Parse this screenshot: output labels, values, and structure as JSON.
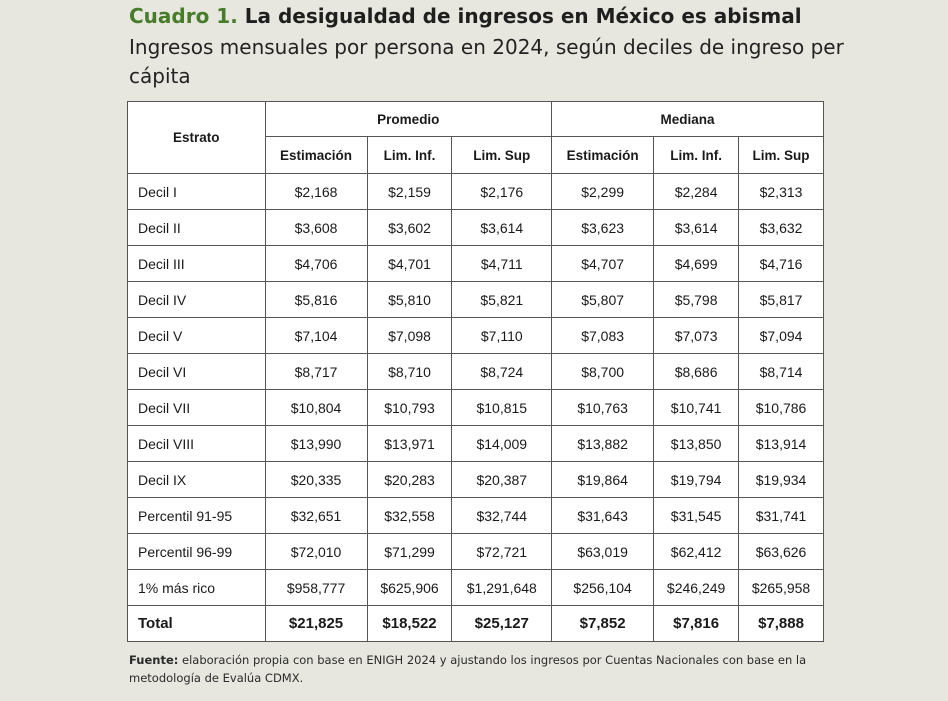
{
  "header": {
    "title_prefix": "Cuadro 1.",
    "title_text": "La desigualdad de ingresos en México es abismal",
    "subtitle": "Ingresos mensuales por persona en 2024, según deciles de ingreso per cápita"
  },
  "table": {
    "stratum_header": "Estrato",
    "groups": [
      "Promedio",
      "Mediana"
    ],
    "subheaders": [
      "Estimación",
      "Lim. Inf.",
      "Lim. Sup",
      "Estimación",
      "Lim. Inf.",
      "Lim. Sup"
    ],
    "rows": [
      {
        "label": "Decil I",
        "values": [
          "$2,168",
          "$2,159",
          "$2,176",
          "$2,299",
          "$2,284",
          "$2,313"
        ]
      },
      {
        "label": "Decil II",
        "values": [
          "$3,608",
          "$3,602",
          "$3,614",
          "$3,623",
          "$3,614",
          "$3,632"
        ]
      },
      {
        "label": "Decil III",
        "values": [
          "$4,706",
          "$4,701",
          "$4,711",
          "$4,707",
          "$4,699",
          "$4,716"
        ]
      },
      {
        "label": "Decil IV",
        "values": [
          "$5,816",
          "$5,810",
          "$5,821",
          "$5,807",
          "$5,798",
          "$5,817"
        ]
      },
      {
        "label": "Decil V",
        "values": [
          "$7,104",
          "$7,098",
          "$7,110",
          "$7,083",
          "$7,073",
          "$7,094"
        ]
      },
      {
        "label": "Decil VI",
        "values": [
          "$8,717",
          "$8,710",
          "$8,724",
          "$8,700",
          "$8,686",
          "$8,714"
        ]
      },
      {
        "label": "Decil VII",
        "values": [
          "$10,804",
          "$10,793",
          "$10,815",
          "$10,763",
          "$10,741",
          "$10,786"
        ]
      },
      {
        "label": "Decil VIII",
        "values": [
          "$13,990",
          "$13,971",
          "$14,009",
          "$13,882",
          "$13,850",
          "$13,914"
        ]
      },
      {
        "label": "Decil IX",
        "values": [
          "$20,335",
          "$20,283",
          "$20,387",
          "$19,864",
          "$19,794",
          "$19,934"
        ]
      },
      {
        "label": "Percentil 91-95",
        "values": [
          "$32,651",
          "$32,558",
          "$32,744",
          "$31,643",
          "$31,545",
          "$31,741"
        ]
      },
      {
        "label": "Percentil 96-99",
        "values": [
          "$72,010",
          "$71,299",
          "$72,721",
          "$63,019",
          "$62,412",
          "$63,626"
        ]
      },
      {
        "label": "1% más rico",
        "values": [
          "$958,777",
          "$625,906",
          "$1,291,648",
          "$256,104",
          "$246,249",
          "$265,958"
        ]
      },
      {
        "label": "Total",
        "values": [
          "$21,825",
          "$18,522",
          "$25,127",
          "$7,852",
          "$7,816",
          "$7,888"
        ]
      }
    ]
  },
  "source": {
    "label": "Fuente:",
    "text": " elaboración propia con base en ENIGH 2024 y ajustando los ingresos por Cuentas Nacionales con base en la metodología de Evalúa CDMX."
  },
  "colors": {
    "accent": "#477d2a",
    "background": "#e7e7df",
    "table_background": "#ffffff",
    "border": "#555555"
  }
}
